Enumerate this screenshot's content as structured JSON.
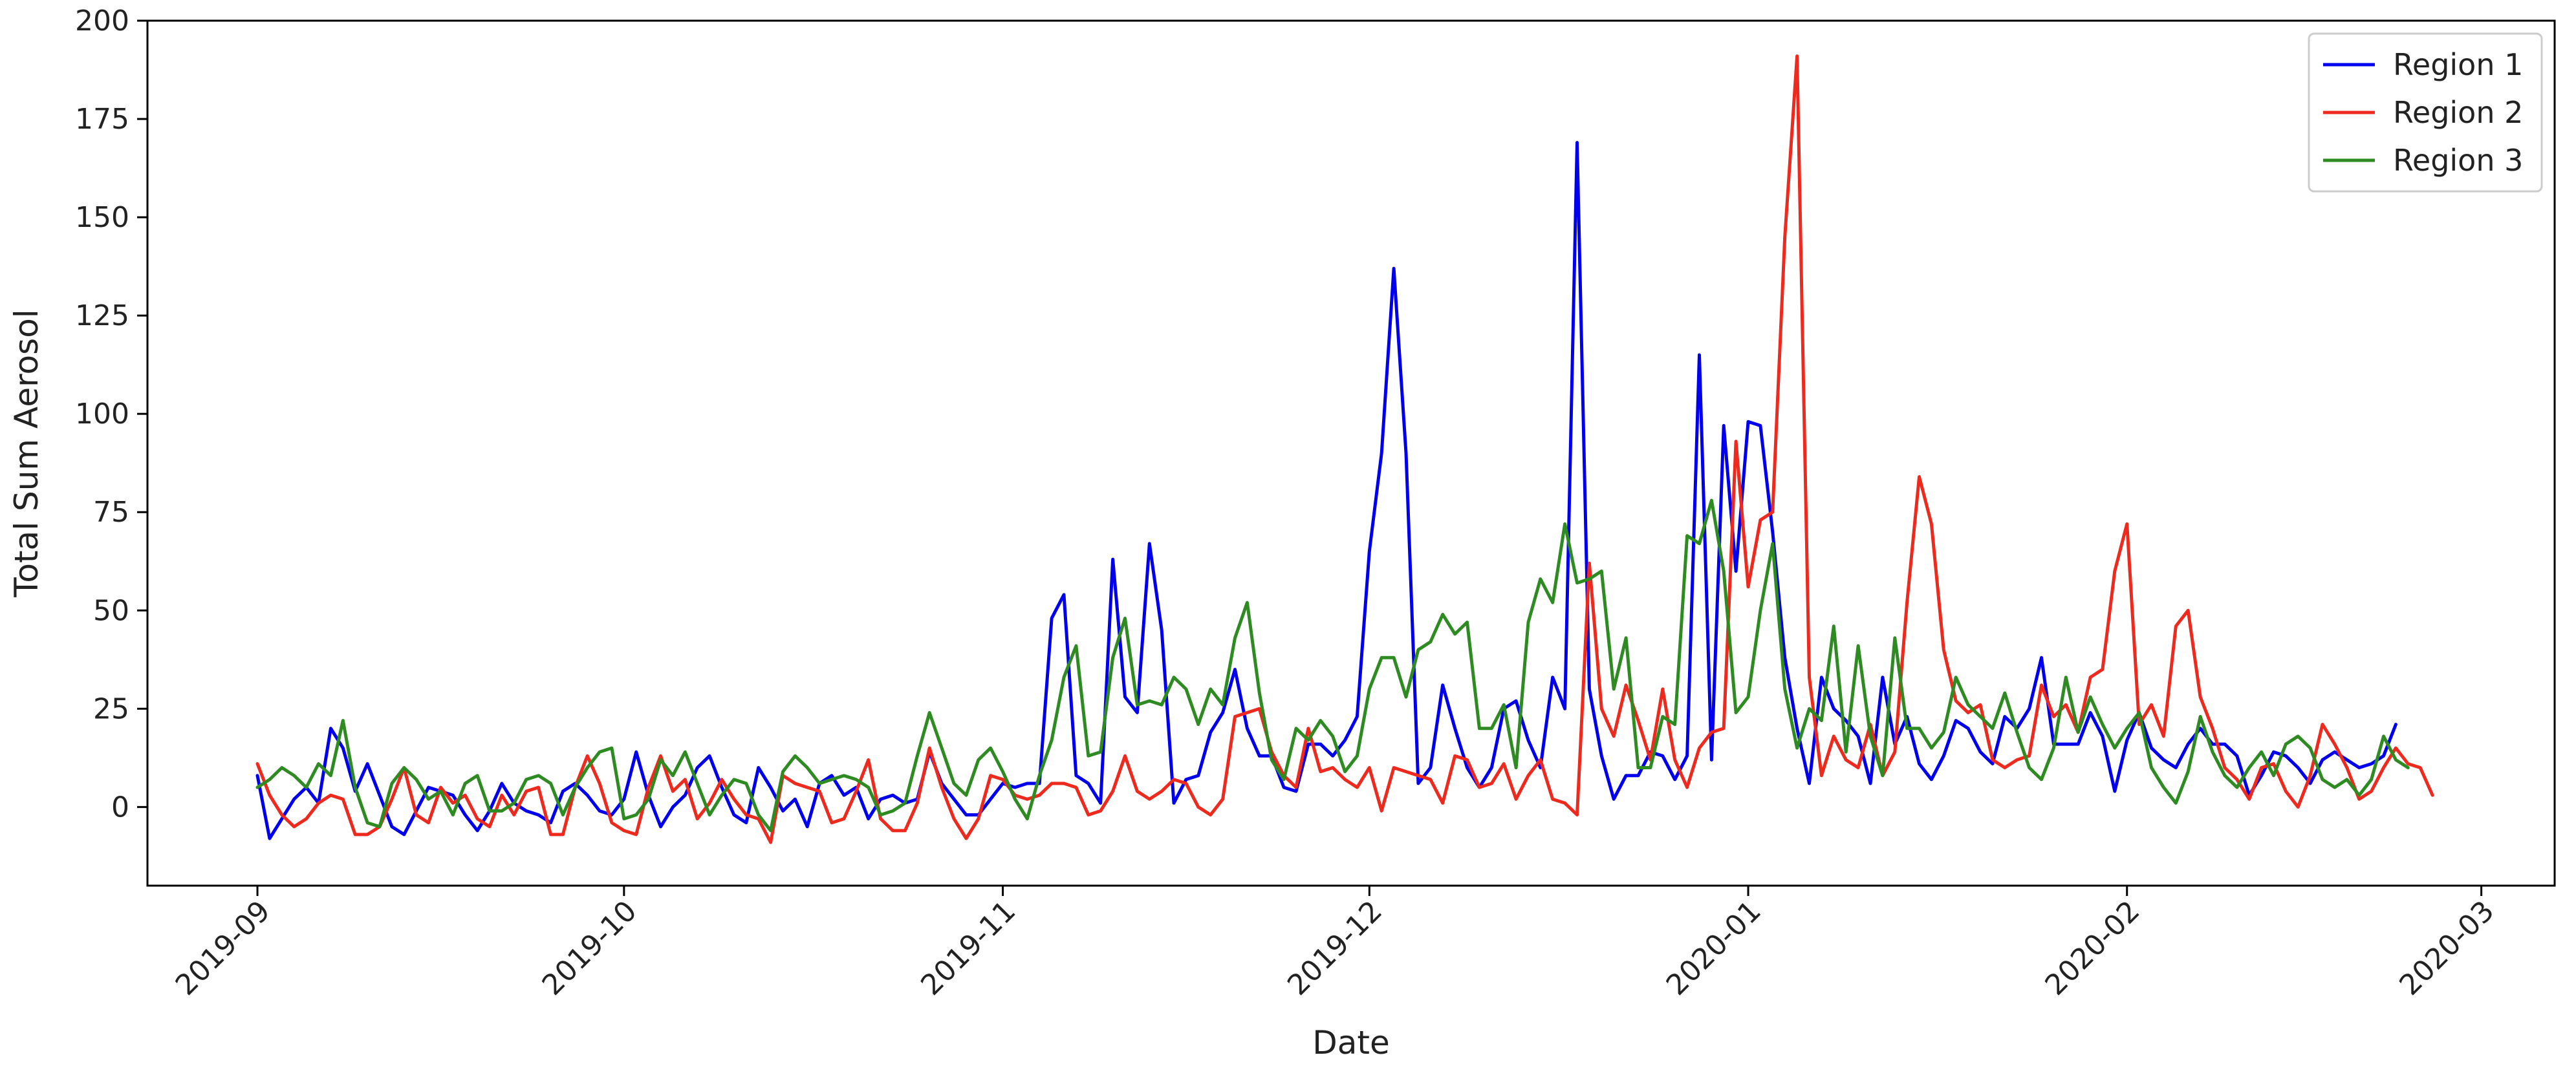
{
  "chart_data": {
    "type": "line",
    "xlabel": "Date",
    "ylabel": "Total Sum Aerosol",
    "x_start": "2019-09-01",
    "x_step_days": 1,
    "xlim": [
      "2019-08-23",
      "2020-03-07"
    ],
    "ylim": [
      -20,
      200
    ],
    "y_ticks": [
      0,
      25,
      50,
      75,
      100,
      125,
      150,
      175,
      200
    ],
    "x_ticks": [
      {
        "date": "2019-09-01",
        "label": "2019-09"
      },
      {
        "date": "2019-10-01",
        "label": "2019-10"
      },
      {
        "date": "2019-11-01",
        "label": "2019-11"
      },
      {
        "date": "2019-12-01",
        "label": "2019-12"
      },
      {
        "date": "2020-01-01",
        "label": "2020-01"
      },
      {
        "date": "2020-02-01",
        "label": "2020-02"
      },
      {
        "date": "2020-03-01",
        "label": "2020-03"
      }
    ],
    "grid": false,
    "legend_position": "top-right",
    "series": [
      {
        "name": "Region 1",
        "color": "#0000ee",
        "values": [
          8,
          -8,
          -3,
          2,
          5,
          1,
          20,
          15,
          4,
          11,
          3,
          -5,
          -7,
          -1,
          5,
          4,
          3,
          -2,
          -6,
          -1,
          6,
          1,
          -1,
          -2,
          -4,
          4,
          6,
          3,
          -1,
          -2,
          2,
          14,
          3,
          -5,
          0,
          3,
          10,
          13,
          5,
          -2,
          -4,
          10,
          5,
          -1,
          2,
          -5,
          6,
          8,
          3,
          5,
          -3,
          2,
          3,
          1,
          2,
          14,
          6,
          2,
          -2,
          -2,
          2,
          6,
          5,
          6,
          6,
          48,
          54,
          8,
          6,
          1,
          63,
          28,
          24,
          67,
          45,
          1,
          7,
          8,
          19,
          24,
          35,
          20,
          13,
          13,
          5,
          4,
          16,
          16,
          13,
          17,
          23,
          65,
          90,
          137,
          90,
          6,
          10,
          31,
          20,
          10,
          5,
          10,
          25,
          27,
          17,
          10,
          33,
          25,
          169,
          30,
          13,
          2,
          8,
          8,
          14,
          13,
          7,
          13,
          115,
          12,
          97,
          60,
          98,
          97,
          70,
          38,
          20,
          6,
          33,
          25,
          22,
          18,
          6,
          33,
          16,
          23,
          11,
          7,
          13,
          22,
          20,
          14,
          11,
          23,
          20,
          25,
          38,
          16,
          16,
          16,
          24,
          18,
          4,
          17,
          24,
          15,
          12,
          10,
          16,
          20,
          16,
          16,
          13,
          3,
          8,
          14,
          13,
          10,
          6,
          12,
          14,
          12,
          10,
          11,
          13,
          21
        ]
      },
      {
        "name": "Region 2",
        "color": "#ee2a1e",
        "values": [
          11,
          3,
          -2,
          -5,
          -3,
          1,
          3,
          2,
          -7,
          -7,
          -5,
          2,
          10,
          -2,
          -4,
          5,
          1,
          3,
          -3,
          -5,
          3,
          -2,
          4,
          5,
          -7,
          -7,
          5,
          13,
          6,
          -4,
          -6,
          -7,
          5,
          13,
          4,
          7,
          -3,
          1,
          7,
          2,
          -2,
          -3,
          -9,
          8,
          6,
          5,
          4,
          -4,
          -3,
          4,
          12,
          -3,
          -6,
          -6,
          1,
          15,
          5,
          -3,
          -8,
          -3,
          8,
          7,
          3,
          2,
          3,
          6,
          6,
          5,
          -2,
          -1,
          4,
          13,
          4,
          2,
          4,
          7,
          6,
          0,
          -2,
          2,
          23,
          24,
          25,
          14,
          8,
          5,
          20,
          9,
          10,
          7,
          5,
          10,
          -1,
          10,
          9,
          8,
          7,
          1,
          13,
          12,
          5,
          6,
          11,
          2,
          8,
          12,
          2,
          1,
          -2,
          62,
          25,
          18,
          31,
          22,
          12,
          30,
          12,
          5,
          15,
          19,
          20,
          93,
          56,
          73,
          75,
          145,
          191,
          33,
          8,
          18,
          12,
          10,
          21,
          8,
          14,
          52,
          84,
          72,
          40,
          27,
          24,
          26,
          12,
          10,
          12,
          13,
          31,
          23,
          26,
          19,
          33,
          35,
          60,
          72,
          21,
          26,
          18,
          46,
          50,
          28,
          20,
          10,
          7,
          2,
          10,
          11,
          4,
          0,
          8,
          21,
          16,
          10,
          2,
          4,
          10,
          15,
          11,
          10,
          3
        ]
      },
      {
        "name": "Region 3",
        "color": "#2e8b22",
        "values": [
          5,
          7,
          10,
          8,
          5,
          11,
          8,
          22,
          5,
          -4,
          -5,
          6,
          10,
          7,
          2,
          4,
          -2,
          6,
          8,
          -1,
          -1,
          1,
          7,
          8,
          6,
          -2,
          5,
          10,
          14,
          15,
          -3,
          -2,
          2,
          12,
          8,
          14,
          6,
          -2,
          3,
          7,
          6,
          -2,
          -6,
          9,
          13,
          10,
          6,
          7,
          8,
          7,
          5,
          -2,
          -1,
          1,
          13,
          24,
          15,
          6,
          3,
          12,
          15,
          9,
          2,
          -3,
          8,
          17,
          33,
          41,
          13,
          14,
          38,
          48,
          26,
          27,
          26,
          33,
          30,
          21,
          30,
          26,
          43,
          52,
          29,
          12,
          7,
          20,
          17,
          22,
          18,
          9,
          13,
          30,
          38,
          38,
          28,
          40,
          42,
          49,
          44,
          47,
          20,
          20,
          26,
          10,
          47,
          58,
          52,
          72,
          57,
          58,
          60,
          30,
          43,
          10,
          10,
          23,
          21,
          69,
          67,
          78,
          60,
          24,
          28,
          50,
          67,
          30,
          15,
          25,
          22,
          46,
          14,
          41,
          18,
          8,
          43,
          20,
          20,
          15,
          19,
          33,
          26,
          23,
          20,
          29,
          19,
          10,
          7,
          15,
          33,
          19,
          28,
          21,
          15,
          20,
          24,
          10,
          5,
          1,
          9,
          23,
          14,
          8,
          5,
          10,
          14,
          8,
          16,
          18,
          15,
          7,
          5,
          7,
          3,
          7,
          18,
          12,
          10
        ]
      }
    ]
  }
}
